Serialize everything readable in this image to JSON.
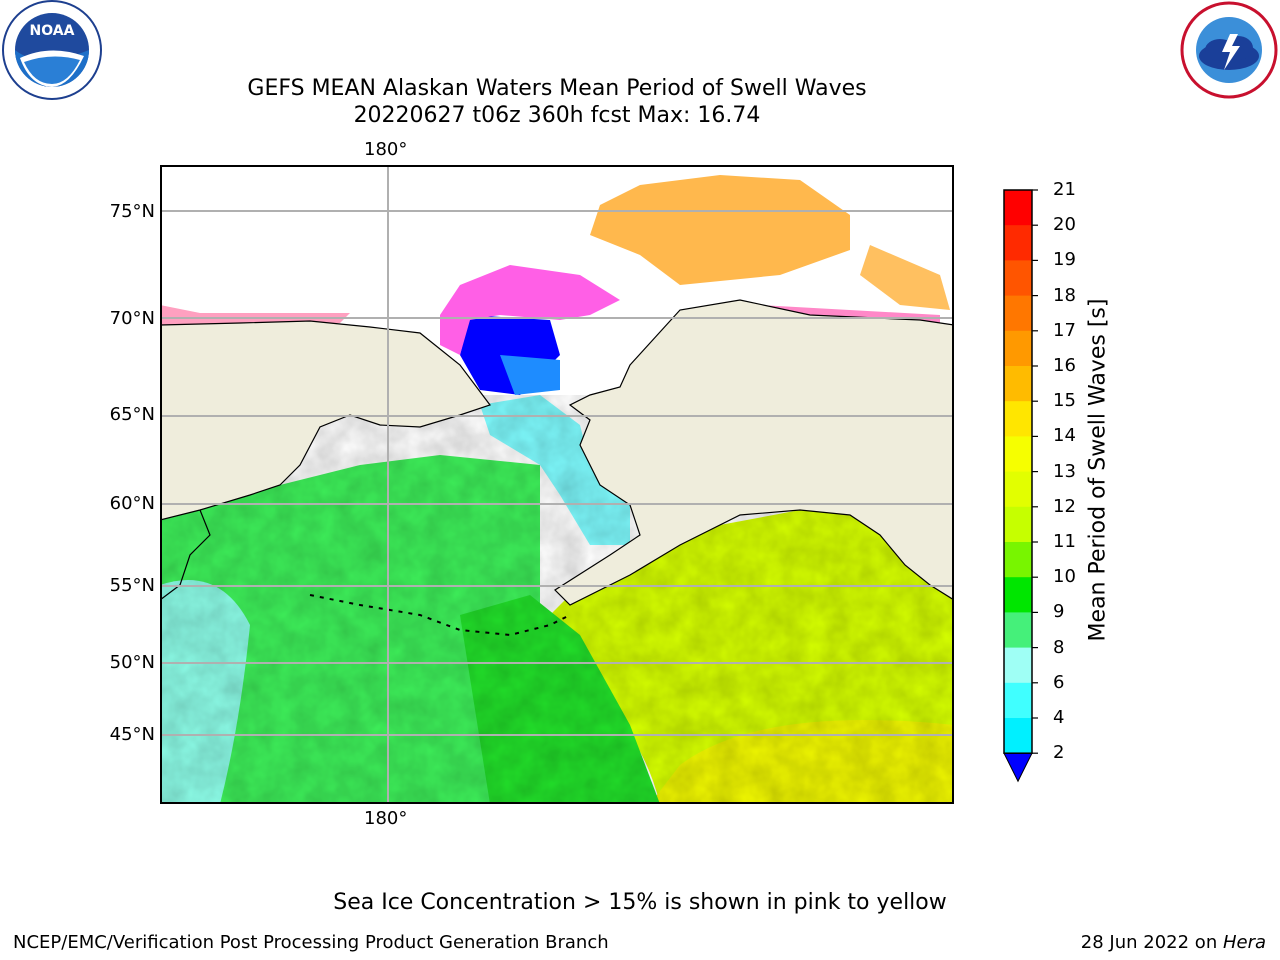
{
  "header": {
    "title_line1": "GEFS MEAN Alaskan Waters Mean Period of Swell Waves",
    "title_line2": "20220627 t06z 360h fcst   Max: 16.74",
    "left_logo": "noaa-logo",
    "right_logo": "nws-logo"
  },
  "map": {
    "lat_labels": [
      "75°N",
      "70°N",
      "65°N",
      "60°N",
      "55°N",
      "50°N",
      "45°N"
    ],
    "lon_label_top": "180°",
    "lon_label_bottom": "180°",
    "colors": {
      "land": "#efeddc",
      "ice_pink": "#ff66e0",
      "ice_orange": "#ffb84d",
      "deep_blue": "#0000ff",
      "green": "#35e635",
      "yellow_green": "#cfff00",
      "light_cyan": "#9cffff"
    }
  },
  "colorbar": {
    "label": "Mean Period of Swell Waves [s]",
    "ticks": [
      "21",
      "20",
      "19",
      "18",
      "17",
      "16",
      "15",
      "14",
      "13",
      "12",
      "11",
      "10",
      "9",
      "8",
      "6",
      "4",
      "2"
    ],
    "colors": [
      "#ff0000",
      "#ff2a00",
      "#ff5500",
      "#ff7700",
      "#ff9900",
      "#ffbb00",
      "#ffe600",
      "#f6ff00",
      "#e2ff00",
      "#c6ff00",
      "#78f500",
      "#00e600",
      "#45f07a",
      "#9ffff5",
      "#40ffff",
      "#00f0ff",
      "#0077ff"
    ],
    "under_color": "#0000ff"
  },
  "footer": {
    "note": "Sea Ice Concentration > 15% is shown in pink to yellow",
    "left": "NCEP/EMC/Verification Post Processing Product Generation Branch",
    "right_date": "28 Jun 2022 on ",
    "right_host": "Hera"
  }
}
